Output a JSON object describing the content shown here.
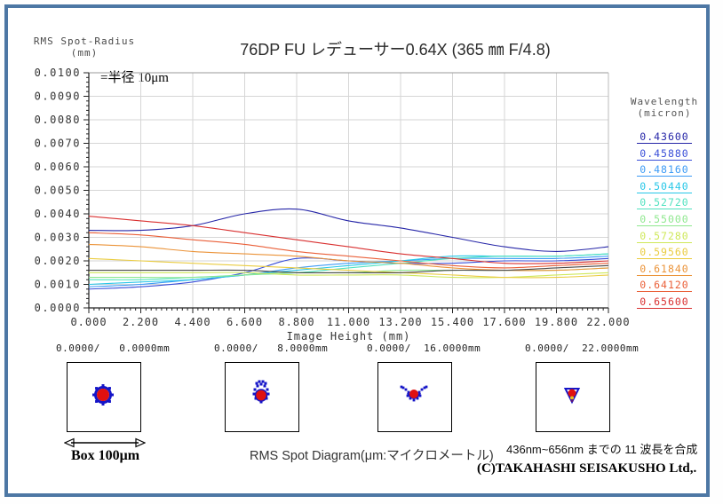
{
  "frame": {
    "border_color": "#4d77a4"
  },
  "header": {
    "ylabel_line1": "RMS Spot-Radius",
    "ylabel_line2": "(mm)",
    "title": "76DP FU レデューサー0.64X (365 ㎜ F/4.8)",
    "annotation": "=半径 10μm"
  },
  "chart_data": {
    "type": "line",
    "title": "76DP FU レデューサー0.64X (365 ㎜ F/4.8)",
    "xlabel": "Image Height (mm)",
    "ylabel": "RMS Spot-Radius (mm)",
    "xlim": [
      0,
      22
    ],
    "ylim": [
      0,
      0.01
    ],
    "grid": true,
    "x_tick_labels": [
      "0.000",
      "2.200",
      "4.400",
      "6.600",
      "8.800",
      "11.000",
      "13.200",
      "15.400",
      "17.600",
      "19.800",
      "22.000"
    ],
    "y_tick_labels": [
      "0.0000",
      "0.0010",
      "0.0020",
      "0.0030",
      "0.0040",
      "0.0050",
      "0.0060",
      "0.0070",
      "0.0080",
      "0.0090",
      "0.0100"
    ],
    "x": [
      0,
      2.2,
      4.4,
      6.6,
      8.8,
      11.0,
      13.2,
      15.4,
      17.6,
      19.8,
      22.0
    ],
    "series": [
      {
        "name": "0.43600",
        "color": "#2626a8",
        "in_legend": true,
        "values": [
          0.0033,
          0.0033,
          0.0035,
          0.004,
          0.0042,
          0.0037,
          0.0034,
          0.003,
          0.0026,
          0.0024,
          0.0026
        ]
      },
      {
        "name": "0.45880",
        "color": "#3a4fd8",
        "in_legend": true,
        "values": [
          0.0008,
          0.0009,
          0.0011,
          0.0015,
          0.0021,
          0.002,
          0.0019,
          0.0019,
          0.002,
          0.002,
          0.0021
        ]
      },
      {
        "name": "0.48160",
        "color": "#3d9bf5",
        "in_legend": true,
        "values": [
          0.0009,
          0.001,
          0.0012,
          0.0014,
          0.0017,
          0.0019,
          0.002,
          0.0021,
          0.0021,
          0.0021,
          0.0022
        ]
      },
      {
        "name": "0.50440",
        "color": "#27c7e8",
        "in_legend": true,
        "values": [
          0.001,
          0.0011,
          0.0012,
          0.0014,
          0.0016,
          0.0018,
          0.002,
          0.0022,
          0.0022,
          0.0022,
          0.0023
        ]
      },
      {
        "name": "0.52720",
        "color": "#52e2c0",
        "in_legend": true,
        "values": [
          0.0012,
          0.0012,
          0.0013,
          0.0014,
          0.0015,
          0.0017,
          0.0019,
          0.0021,
          0.0022,
          0.0022,
          0.0023
        ]
      },
      {
        "name": "0.55000",
        "color": "#8fe88f",
        "in_legend": true,
        "values": [
          0.0013,
          0.0013,
          0.0013,
          0.0014,
          0.0015,
          0.0015,
          0.0016,
          0.0016,
          0.0016,
          0.0016,
          0.0017
        ]
      },
      {
        "name": "0.57280",
        "color": "#cfe85a",
        "in_legend": true,
        "values": [
          0.0015,
          0.0015,
          0.0015,
          0.0015,
          0.0014,
          0.0014,
          0.0014,
          0.0013,
          0.0013,
          0.0014,
          0.0015
        ]
      },
      {
        "name": "0.59560",
        "color": "#eacc40",
        "in_legend": true,
        "values": [
          0.0021,
          0.002,
          0.0019,
          0.0018,
          0.0017,
          0.0016,
          0.0015,
          0.0014,
          0.0013,
          0.0013,
          0.0014
        ]
      },
      {
        "name": "0.61840",
        "color": "#eb9338",
        "in_legend": true,
        "values": [
          0.0027,
          0.0026,
          0.0024,
          0.0023,
          0.0022,
          0.002,
          0.0019,
          0.0017,
          0.0016,
          0.0016,
          0.0017
        ]
      },
      {
        "name": "0.64120",
        "color": "#ea5f38",
        "in_legend": true,
        "values": [
          0.0032,
          0.0031,
          0.0029,
          0.0027,
          0.0024,
          0.0022,
          0.002,
          0.0018,
          0.0017,
          0.0018,
          0.0019
        ]
      },
      {
        "name": "0.65600",
        "color": "#d93030",
        "in_legend": true,
        "values": [
          0.0039,
          0.0037,
          0.0035,
          0.0032,
          0.0029,
          0.0026,
          0.0023,
          0.0021,
          0.0019,
          0.0019,
          0.002
        ]
      },
      {
        "name": "combined-11-wavelengths",
        "color": "#4a4a4a",
        "in_legend": false,
        "values": [
          0.0016,
          0.0016,
          0.0016,
          0.0016,
          0.0015,
          0.0015,
          0.0015,
          0.0016,
          0.0016,
          0.0017,
          0.0018
        ]
      }
    ],
    "legend": {
      "title_line1": "Wavelength",
      "title_line2": "(micron)",
      "position": "right"
    }
  },
  "spot_diagrams": {
    "items": [
      {
        "label": "0.0000/   0.0000mm",
        "shape": "ring"
      },
      {
        "label": "0.0000/   8.0000mm",
        "shape": "crown"
      },
      {
        "label": "0.0000/  16.0000mm",
        "shape": "gull"
      },
      {
        "label": "0.0000/  22.0000mm",
        "shape": "triangle"
      }
    ],
    "scale_label": "Box 100μm",
    "caption": "RMS Spot Diagram(μm:マイクロメートル)",
    "note": "436nm~656nm までの 11 波長を合成",
    "copyright": "(C)TAKAHASHI SEISAKUSHO Ltd,."
  }
}
